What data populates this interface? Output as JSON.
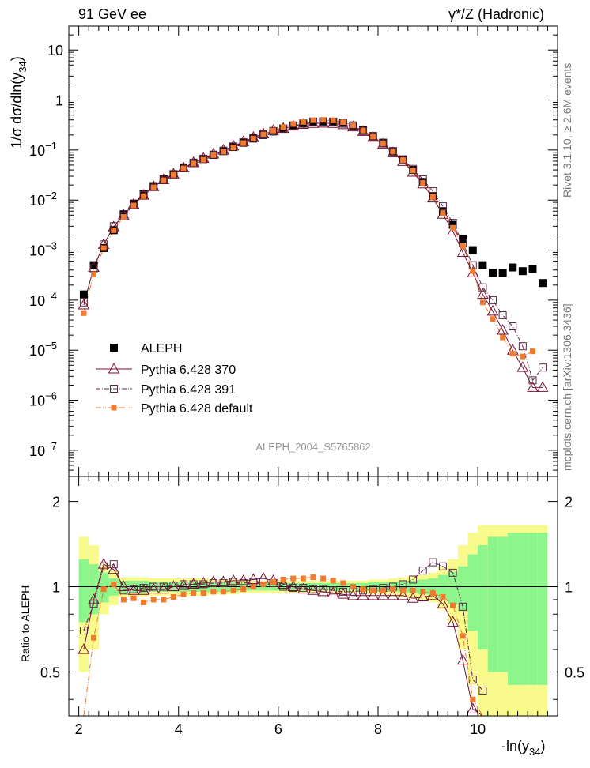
{
  "header": {
    "left_title": "91 GeV ee",
    "right_title": "γ*/Z (Hadronic)"
  },
  "side_labels": {
    "rivet": "Rivet 3.1.10, ≥ 2.6M events",
    "mcplots": "mcplots.cern.ch [arXiv:1306.3436]"
  },
  "watermark": "ALEPH_2004_S5765862",
  "colors": {
    "aleph": "#000000",
    "p370": "#7a1030",
    "p391": "#5a2a4a",
    "pdefault": "#f07b2e",
    "band_inner": "#8cf58c",
    "band_outer": "#f8fa8c"
  },
  "legend": [
    {
      "key": "aleph",
      "label": "ALEPH"
    },
    {
      "key": "p370",
      "label": "Pythia 6.428 370"
    },
    {
      "key": "p391",
      "label": "Pythia 6.428 391"
    },
    {
      "key": "pdefault",
      "label": "Pythia 6.428 default"
    }
  ],
  "chart_data": {
    "type": "scatter",
    "xlabel": "-ln(y",
    "xlabel_sub": "34",
    "ylabel_main": "1/σ dσ/dln(y",
    "ylabel_sub": "34",
    "ratio_ylabel": "Ratio to ALEPH",
    "xlim": [
      1.8,
      11.6
    ],
    "ylim_main": [
      3e-08,
      30
    ],
    "ylim_ratio": [
      0.35,
      2.45
    ],
    "yscale_main": "log",
    "yscale_ratio": "log",
    "x_ticks": [
      2,
      4,
      6,
      8,
      10
    ],
    "main_y_ticks": [
      {
        "v": 10,
        "label": "10"
      },
      {
        "v": 1,
        "label": "1"
      },
      {
        "v": 0.1,
        "label": "10",
        "exp": "−1"
      },
      {
        "v": 0.01,
        "label": "10",
        "exp": "−2"
      },
      {
        "v": 0.001,
        "label": "10",
        "exp": "−3"
      },
      {
        "v": 0.0001,
        "label": "10",
        "exp": "−4"
      },
      {
        "v": 1e-05,
        "label": "10",
        "exp": "−5"
      },
      {
        "v": 1e-06,
        "label": "10",
        "exp": "−6"
      },
      {
        "v": 1e-07,
        "label": "10",
        "exp": "−7"
      }
    ],
    "ratio_y_ticks": [
      {
        "v": 2,
        "label": "2"
      },
      {
        "v": 1,
        "label": "1"
      },
      {
        "v": 0.5,
        "label": "0.5"
      }
    ],
    "x": [
      2.1,
      2.3,
      2.5,
      2.7,
      2.9,
      3.1,
      3.3,
      3.5,
      3.7,
      3.9,
      4.1,
      4.3,
      4.5,
      4.7,
      4.9,
      5.1,
      5.3,
      5.5,
      5.7,
      5.9,
      6.1,
      6.3,
      6.5,
      6.7,
      6.9,
      7.1,
      7.3,
      7.5,
      7.7,
      7.9,
      8.1,
      8.3,
      8.5,
      8.7,
      8.9,
      9.1,
      9.3,
      9.5,
      9.7,
      9.9,
      10.1,
      10.3,
      10.5,
      10.7,
      10.9,
      11.1,
      11.3
    ],
    "aleph": [
      0.00013,
      0.0005,
      0.0011,
      0.0025,
      0.0052,
      0.0085,
      0.013,
      0.019,
      0.026,
      0.033,
      0.044,
      0.055,
      0.066,
      0.08,
      0.095,
      0.115,
      0.14,
      0.17,
      0.2,
      0.235,
      0.27,
      0.31,
      0.34,
      0.37,
      0.375,
      0.37,
      0.35,
      0.31,
      0.25,
      0.19,
      0.14,
      0.095,
      0.065,
      0.04,
      0.023,
      0.012,
      0.006,
      0.0032,
      0.0017,
      0.001,
      0.0005,
      0.00035,
      0.00035,
      0.00045,
      0.00038,
      0.00042,
      0.00022
    ],
    "p370": [
      8e-05,
      0.00045,
      0.0013,
      0.0029,
      0.005,
      0.0082,
      0.0125,
      0.0185,
      0.0255,
      0.033,
      0.044,
      0.056,
      0.068,
      0.083,
      0.099,
      0.12,
      0.146,
      0.178,
      0.21,
      0.245,
      0.27,
      0.3,
      0.325,
      0.34,
      0.345,
      0.34,
      0.32,
      0.29,
      0.235,
      0.18,
      0.13,
      0.088,
      0.059,
      0.036,
      0.021,
      0.011,
      0.0052,
      0.0024,
      0.0009,
      0.00035,
      0.00013,
      6e-05,
      2.5e-05,
      1e-05,
      4.5e-06,
      1.8e-06,
      1.8e-06
    ],
    "p391": [
      9e-05,
      0.00043,
      0.0013,
      0.003,
      0.0049,
      0.0082,
      0.0125,
      0.0185,
      0.0255,
      0.033,
      0.045,
      0.056,
      0.067,
      0.081,
      0.097,
      0.118,
      0.143,
      0.175,
      0.206,
      0.24,
      0.27,
      0.305,
      0.335,
      0.36,
      0.365,
      0.36,
      0.335,
      0.3,
      0.24,
      0.185,
      0.135,
      0.093,
      0.065,
      0.042,
      0.026,
      0.015,
      0.0075,
      0.0035,
      0.0014,
      0.0005,
      0.00018,
      0.0001,
      5e-05,
      3e-05,
      1.2e-05,
      2.5e-06,
      4.5e-06
    ],
    "pdefault": [
      5.5e-05,
      0.00033,
      0.0011,
      0.0025,
      0.0046,
      0.0078,
      0.012,
      0.018,
      0.025,
      0.032,
      0.043,
      0.054,
      0.064,
      0.079,
      0.093,
      0.112,
      0.138,
      0.17,
      0.205,
      0.245,
      0.285,
      0.33,
      0.365,
      0.395,
      0.4,
      0.39,
      0.36,
      0.31,
      0.245,
      0.185,
      0.135,
      0.093,
      0.063,
      0.039,
      0.022,
      0.0115,
      0.0055,
      0.0028,
      0.0012,
      0.00038,
      9e-05,
      4.2e-05,
      1.8e-05,
      8.5e-06,
      7.5e-06,
      9.5e-06,
      null
    ],
    "r370": [
      0.6,
      0.9,
      1.2,
      1.15,
      1.0,
      0.97,
      0.97,
      0.98,
      0.98,
      1.0,
      1.01,
      1.02,
      1.03,
      1.04,
      1.04,
      1.05,
      1.05,
      1.06,
      1.07,
      1.05,
      1.02,
      1.0,
      0.98,
      0.97,
      0.96,
      0.95,
      0.94,
      0.93,
      0.93,
      0.93,
      0.93,
      0.93,
      0.93,
      0.91,
      0.92,
      0.93,
      0.87,
      0.75,
      0.55,
      0.37,
      0.3,
      null,
      null,
      null,
      null,
      null,
      null
    ],
    "r391": [
      0.7,
      0.87,
      1.18,
      1.2,
      0.97,
      0.98,
      0.99,
      1.0,
      1.0,
      1.01,
      1.02,
      1.02,
      1.02,
      1.03,
      1.03,
      1.04,
      1.03,
      1.04,
      1.04,
      1.03,
      1.0,
      0.99,
      0.99,
      0.98,
      0.98,
      0.97,
      0.96,
      0.96,
      0.97,
      0.98,
      0.99,
      1.0,
      1.02,
      1.06,
      1.14,
      1.22,
      1.18,
      1.12,
      0.85,
      0.47,
      0.43,
      null,
      null,
      null,
      null,
      null,
      null
    ],
    "rdefault": [
      0.35,
      0.66,
      0.98,
      1.02,
      0.9,
      0.91,
      0.88,
      0.9,
      0.9,
      0.92,
      0.94,
      0.95,
      0.95,
      0.96,
      0.96,
      0.97,
      0.98,
      1.0,
      1.02,
      1.04,
      1.06,
      1.07,
      1.07,
      1.08,
      1.07,
      1.05,
      1.03,
      1.0,
      0.98,
      0.97,
      0.97,
      0.98,
      0.97,
      0.97,
      0.96,
      0.95,
      0.92,
      0.86,
      0.67,
      0.4,
      0.28,
      null,
      null,
      null,
      null,
      null,
      null
    ],
    "band_inner": [
      0.75,
      0.8,
      0.88,
      0.93,
      0.95,
      0.95,
      0.95,
      0.96,
      0.96,
      0.96,
      0.96,
      0.96,
      0.96,
      0.96,
      0.96,
      0.96,
      0.97,
      0.97,
      0.97,
      0.97,
      0.97,
      0.97,
      0.97,
      0.97,
      0.97,
      0.97,
      0.97,
      0.97,
      0.97,
      0.96,
      0.96,
      0.96,
      0.95,
      0.95,
      0.94,
      0.93,
      0.9,
      0.87,
      0.82,
      0.7,
      0.6,
      0.5,
      0.5,
      0.45,
      0.45,
      0.45,
      0.45
    ],
    "band_outer": [
      0.5,
      0.6,
      0.8,
      0.86,
      0.92,
      0.92,
      0.92,
      0.93,
      0.93,
      0.93,
      0.93,
      0.93,
      0.93,
      0.94,
      0.94,
      0.94,
      0.95,
      0.95,
      0.95,
      0.95,
      0.95,
      0.95,
      0.95,
      0.95,
      0.95,
      0.95,
      0.95,
      0.95,
      0.95,
      0.94,
      0.94,
      0.93,
      0.92,
      0.91,
      0.9,
      0.88,
      0.83,
      0.75,
      0.6,
      0.45,
      0.35,
      0.35,
      0.35,
      0.35,
      0.35,
      0.35,
      0.35
    ]
  }
}
